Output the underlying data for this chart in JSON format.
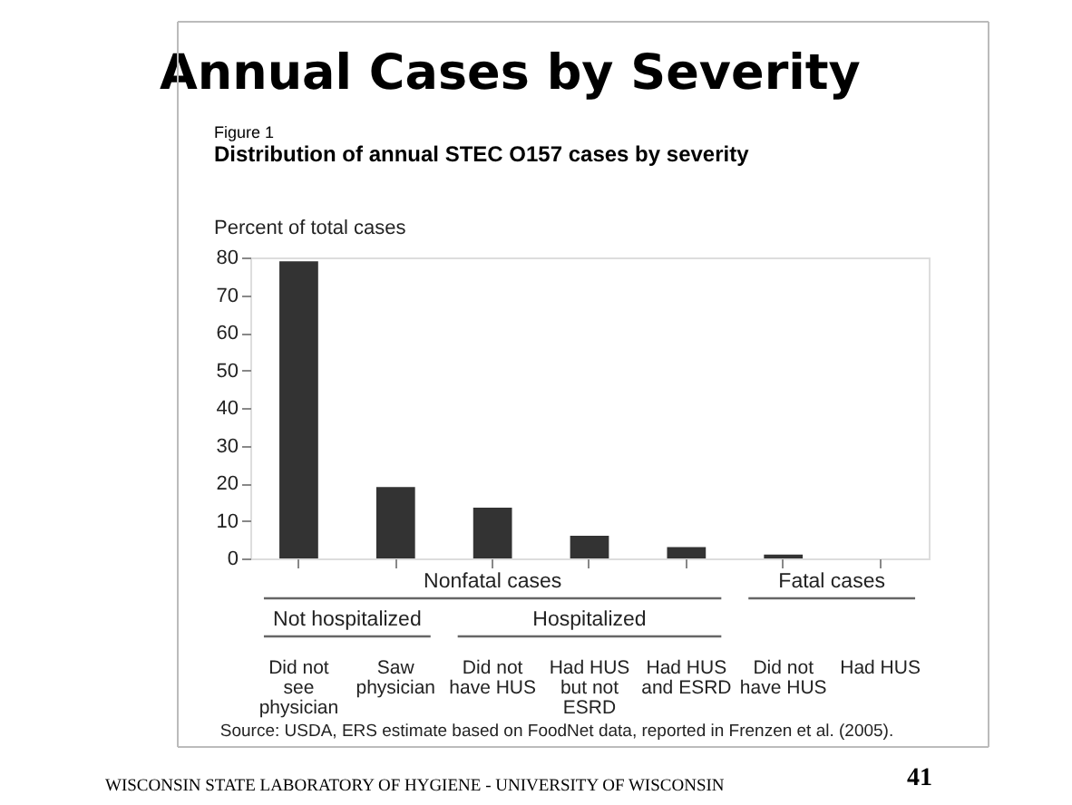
{
  "chart_data": {
    "type": "bar",
    "title": "Annual Cases by Severity",
    "subtitle": "Figure 1\nDistribution of annual STEC O157 cases by severity",
    "ylabel": "Percent of total cases",
    "categories": [
      "Did not see physician",
      "Saw physician",
      "Did not have HUS",
      "Had HUS but not ESRD",
      "Had HUS and ESRD",
      "Did not have HUS",
      "Had HUS"
    ],
    "values": [
      79,
      19,
      13.5,
      6,
      3,
      1,
      0
    ],
    "color": "#333333",
    "ylim": [
      0,
      80
    ],
    "yticks": [
      0,
      10,
      20,
      30,
      40,
      50,
      60,
      70,
      80
    ],
    "grid": false,
    "annotations": [
      "Nonfatal cases",
      "Fatal cases",
      "Not hospitalized",
      "Hospitalized",
      "Source: USDA, ERS estimate based on FoodNet data, reported in Frenzen et al. (2005).",
      "WISCONSIN STATE LABORATORY OF HYGIENE - UNIVERSITY OF WISCONSIN",
      "41"
    ]
  }
}
